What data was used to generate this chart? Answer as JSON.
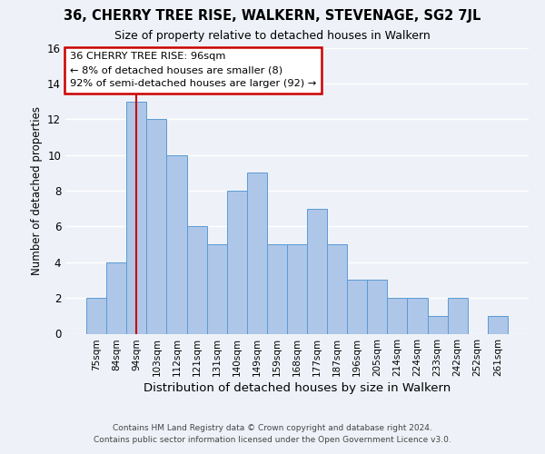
{
  "title1": "36, CHERRY TREE RISE, WALKERN, STEVENAGE, SG2 7JL",
  "title2": "Size of property relative to detached houses in Walkern",
  "xlabel": "Distribution of detached houses by size in Walkern",
  "ylabel": "Number of detached properties",
  "bar_labels": [
    "75sqm",
    "84sqm",
    "94sqm",
    "103sqm",
    "112sqm",
    "121sqm",
    "131sqm",
    "140sqm",
    "149sqm",
    "159sqm",
    "168sqm",
    "177sqm",
    "187sqm",
    "196sqm",
    "205sqm",
    "214sqm",
    "224sqm",
    "233sqm",
    "242sqm",
    "252sqm",
    "261sqm"
  ],
  "bar_values": [
    2,
    4,
    13,
    12,
    10,
    6,
    5,
    8,
    9,
    5,
    5,
    7,
    5,
    3,
    3,
    2,
    2,
    1,
    2,
    0,
    1
  ],
  "bar_color": "#aec6e8",
  "bar_edge_color": "#5b9bd5",
  "vline_x_index": 2,
  "vline_color": "#cc0000",
  "ylim": [
    0,
    16
  ],
  "yticks": [
    0,
    2,
    4,
    6,
    8,
    10,
    12,
    14,
    16
  ],
  "annotation_lines": [
    "36 CHERRY TREE RISE: 96sqm",
    "← 8% of detached houses are smaller (8)",
    "92% of semi-detached houses are larger (92) →"
  ],
  "annotation_box_color": "#ffffff",
  "annotation_box_edge": "#cc0000",
  "footer1": "Contains HM Land Registry data © Crown copyright and database right 2024.",
  "footer2": "Contains public sector information licensed under the Open Government Licence v3.0.",
  "background_color": "#eef2f8",
  "grid_color": "#ffffff"
}
